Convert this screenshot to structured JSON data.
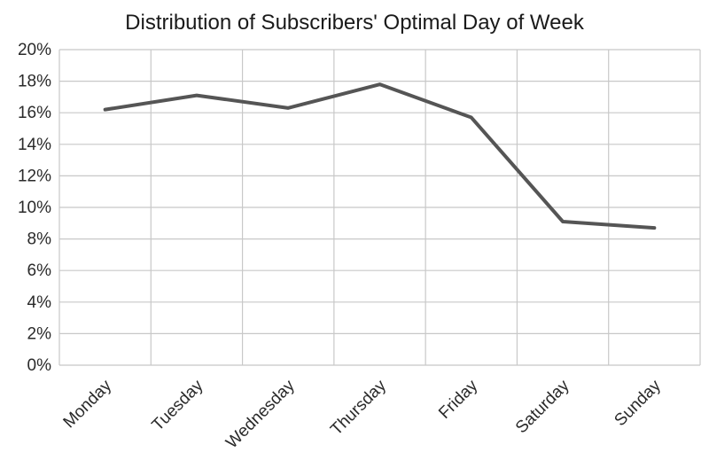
{
  "chart_data": {
    "type": "line",
    "title": "Distribution of Subscribers' Optimal Day of Week",
    "xlabel": "",
    "ylabel": "",
    "categories": [
      "Monday",
      "Tuesday",
      "Wednesday",
      "Thursday",
      "Friday",
      "Saturday",
      "Sunday"
    ],
    "series": [
      {
        "values": [
          16.2,
          17.1,
          16.3,
          17.8,
          15.7,
          9.1,
          8.7
        ]
      }
    ],
    "ylim": [
      0,
      20
    ],
    "yticks": [
      "0%",
      "2%",
      "4%",
      "6%",
      "8%",
      "10%",
      "12%",
      "14%",
      "16%",
      "18%",
      "20%"
    ],
    "grid": true,
    "legend": "none",
    "line_color": "#555555"
  }
}
